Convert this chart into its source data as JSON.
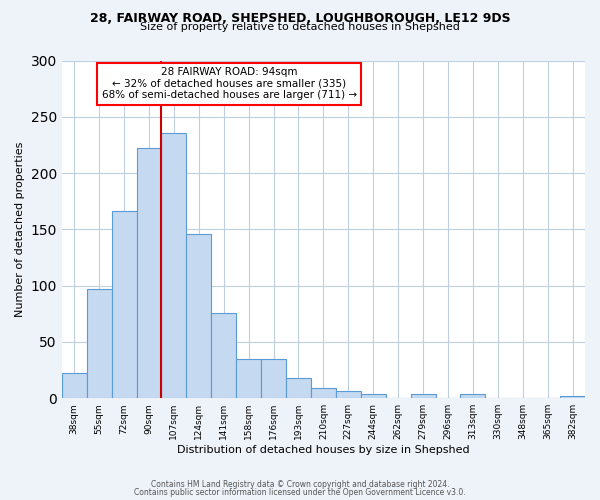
{
  "title1": "28, FAIRWAY ROAD, SHEPSHED, LOUGHBOROUGH, LE12 9DS",
  "title2": "Size of property relative to detached houses in Shepshed",
  "xlabel": "Distribution of detached houses by size in Shepshed",
  "ylabel": "Number of detached properties",
  "bar_values": [
    22,
    97,
    166,
    222,
    236,
    146,
    76,
    35,
    35,
    18,
    9,
    6,
    4,
    0,
    4,
    0,
    4,
    0,
    0,
    0,
    2
  ],
  "bar_labels": [
    "38sqm",
    "55sqm",
    "72sqm",
    "90sqm",
    "107sqm",
    "124sqm",
    "141sqm",
    "158sqm",
    "176sqm",
    "193sqm",
    "210sqm",
    "227sqm",
    "244sqm",
    "262sqm",
    "279sqm",
    "296sqm",
    "313sqm",
    "330sqm",
    "348sqm",
    "365sqm",
    "382sqm"
  ],
  "bar_color": "#c5d9f0",
  "bar_edge_color": "#5b9bd5",
  "vline_color": "#cc0000",
  "vline_bar_index": 3,
  "ylim": [
    0,
    300
  ],
  "yticks": [
    0,
    50,
    100,
    150,
    200,
    250,
    300
  ],
  "annotation_title": "28 FAIRWAY ROAD: 94sqm",
  "annotation_line1": "← 32% of detached houses are smaller (335)",
  "annotation_line2": "68% of semi-detached houses are larger (711) →",
  "footer1": "Contains HM Land Registry data © Crown copyright and database right 2024.",
  "footer2": "Contains public sector information licensed under the Open Government Licence v3.0.",
  "bg_color": "#eef2f9",
  "plot_bg_color": "#ffffff",
  "grid_color": "#c0cfe0"
}
